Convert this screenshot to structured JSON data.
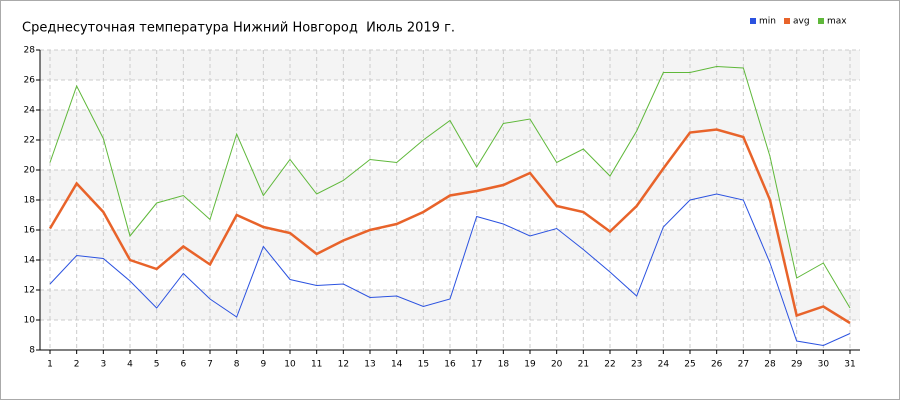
{
  "chart_data": {
    "type": "line",
    "title": "Среднесуточная температура Нижний Новгород  Июль 2019 г.",
    "x": [
      1,
      2,
      3,
      4,
      5,
      6,
      7,
      8,
      9,
      10,
      11,
      12,
      13,
      14,
      15,
      16,
      17,
      18,
      19,
      20,
      21,
      22,
      23,
      24,
      25,
      26,
      27,
      28,
      29,
      30,
      31
    ],
    "xlim": [
      0.625,
      31.375
    ],
    "xticks": [
      1,
      2,
      3,
      4,
      5,
      6,
      7,
      8,
      9,
      10,
      11,
      12,
      13,
      14,
      15,
      16,
      17,
      18,
      19,
      20,
      21,
      22,
      23,
      24,
      25,
      26,
      27,
      28,
      29,
      30,
      31
    ],
    "ylim": [
      8,
      28
    ],
    "yticks": [
      8,
      10,
      12,
      14,
      16,
      18,
      20,
      22,
      24,
      26,
      28
    ],
    "grid": true,
    "legend": "top-right",
    "series": [
      {
        "name": "min",
        "color": "#2b52e0",
        "values": [
          12.4,
          14.3,
          14.1,
          12.6,
          10.8,
          13.1,
          11.4,
          10.2,
          14.9,
          12.7,
          12.3,
          12.4,
          11.5,
          11.6,
          10.9,
          11.4,
          16.9,
          16.4,
          15.6,
          16.1,
          14.7,
          13.2,
          11.6,
          16.2,
          18.0,
          18.4,
          18.0,
          13.8,
          8.6,
          8.3,
          9.1
        ]
      },
      {
        "name": "avg",
        "color": "#e8632a",
        "values": [
          16.1,
          19.1,
          17.2,
          14.0,
          13.4,
          14.9,
          13.7,
          17.0,
          16.2,
          15.8,
          14.4,
          15.3,
          16.0,
          16.4,
          17.2,
          18.3,
          18.6,
          19.0,
          19.8,
          17.6,
          17.2,
          15.9,
          17.6,
          20.1,
          22.5,
          22.7,
          22.2,
          18.0,
          10.3,
          10.9,
          9.8
        ]
      },
      {
        "name": "max",
        "color": "#5fb83a",
        "values": [
          20.5,
          25.6,
          22.1,
          15.6,
          17.8,
          18.3,
          16.7,
          22.4,
          18.3,
          20.7,
          18.4,
          19.3,
          20.7,
          20.5,
          22.0,
          23.3,
          20.2,
          23.1,
          23.4,
          20.5,
          21.4,
          19.6,
          22.6,
          26.5,
          26.5,
          26.9,
          26.8,
          20.9,
          12.8,
          13.8,
          10.8
        ]
      }
    ]
  }
}
